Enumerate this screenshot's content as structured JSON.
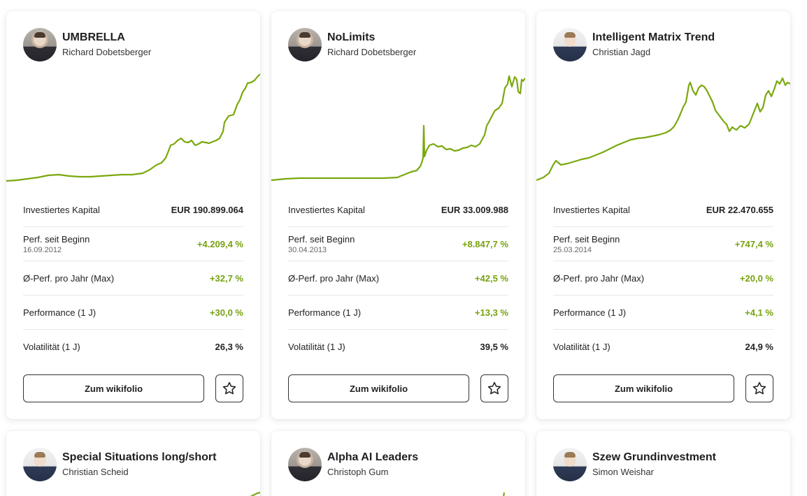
{
  "colors": {
    "accent": "#76a20f",
    "chart_line": "#7aa80e"
  },
  "labels": {
    "capital": "Investiertes Kapital",
    "perf_since_start": "Perf. seit Beginn",
    "perf_avg_year": "Ø-Perf. pro Jahr (Max)",
    "perf_1y": "Performance (1 J)",
    "vol_1y": "Volatilität (1 J)",
    "button": "Zum wikifolio"
  },
  "cards": [
    {
      "title": "UMBRELLA",
      "author": "Richard Dobetsberger",
      "capital": "EUR 190.899.064",
      "perf_since_start": "+4.209,4 %",
      "start_date": "16.09.2012",
      "perf_avg_year": "+32,7 %",
      "perf_1y": "+30,0 %",
      "vol_1y": "26,3 %",
      "icon": "star-outline-icon"
    },
    {
      "title": "NoLimits",
      "author": "Richard Dobetsberger",
      "capital": "EUR 33.009.988",
      "perf_since_start": "+8.847,7 %",
      "start_date": "30.04.2013",
      "perf_avg_year": "+42,5 %",
      "perf_1y": "+13,3 %",
      "vol_1y": "39,5 %",
      "icon": "star-outline-icon"
    },
    {
      "title": "Intelligent Matrix Trend",
      "author": "Christian Jagd",
      "capital": "EUR 22.470.655",
      "perf_since_start": "+747,4 %",
      "start_date": "25.03.2014",
      "perf_avg_year": "+20,0 %",
      "perf_1y": "+4,1 %",
      "vol_1y": "24,9 %",
      "icon": "star-outline-icon"
    },
    {
      "title": "Special Situations long/short",
      "author": "Christian Scheid"
    },
    {
      "title": "Alpha AI Leaders",
      "author": "Christoph Gum"
    },
    {
      "title": "Szew Grundinvestment",
      "author": "Simon Weishar"
    }
  ]
}
